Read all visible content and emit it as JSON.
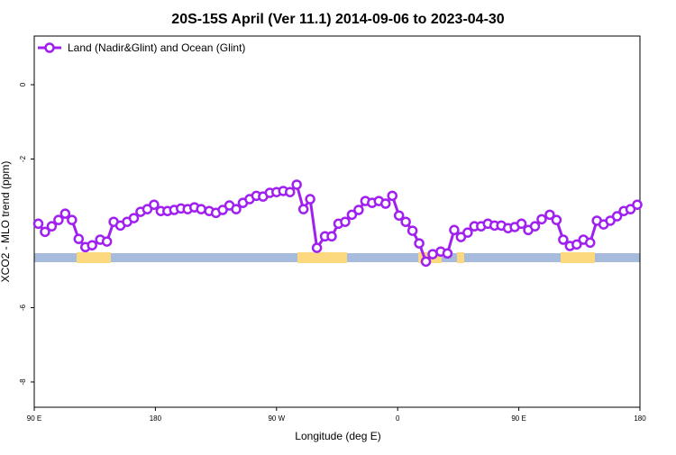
{
  "chart_data": {
    "type": "line",
    "title": "20S-15S April (Ver 11.1)   2014-09-06 to 2023-04-30",
    "x_label": "Longitude (deg E)",
    "y_label": "XCO2 - MLO trend (ppm)",
    "xlim": [
      90,
      540
    ],
    "ylim": [
      -8.68,
      1.31
    ],
    "xticks": [
      {
        "value": 90,
        "label": "90 E"
      },
      {
        "value": 180,
        "label": "180"
      },
      {
        "value": 270,
        "label": "90 W"
      },
      {
        "value": 360,
        "label": "0"
      },
      {
        "value": 450,
        "label": "90 E"
      },
      {
        "value": 540,
        "label": "180"
      }
    ],
    "yticks": [
      -8,
      -6,
      -2,
      0
    ],
    "legend": "top-left",
    "series": [
      {
        "name": "Land (Nadir&Glint) and Ocean (Glint)",
        "color": "#a020f0",
        "x": [
          93,
          98,
          103,
          108,
          113,
          118,
          123,
          128,
          133,
          139,
          144,
          149,
          154,
          159,
          164,
          169,
          174,
          179,
          184,
          189,
          194,
          199,
          204,
          209,
          214,
          220,
          225,
          230,
          235,
          240,
          245,
          250,
          255,
          260,
          265,
          270,
          275,
          280,
          285,
          290,
          295,
          300,
          306,
          311,
          316,
          321,
          326,
          331,
          336,
          341,
          346,
          351,
          356,
          361,
          366,
          371,
          376,
          381,
          386,
          392,
          397,
          402,
          407,
          412,
          417,
          422,
          427,
          432,
          437,
          442,
          447,
          452,
          457,
          462,
          467,
          473,
          478,
          483,
          488,
          493,
          498,
          503,
          508,
          513,
          518,
          523,
          528,
          533,
          538
        ],
        "values": [
          -3.74,
          -3.96,
          -3.81,
          -3.64,
          -3.47,
          -3.64,
          -4.15,
          -4.37,
          -4.32,
          -4.17,
          -4.22,
          -3.69,
          -3.79,
          -3.69,
          -3.59,
          -3.42,
          -3.35,
          -3.23,
          -3.4,
          -3.4,
          -3.37,
          -3.33,
          -3.35,
          -3.3,
          -3.35,
          -3.4,
          -3.45,
          -3.37,
          -3.25,
          -3.35,
          -3.18,
          -3.08,
          -2.99,
          -3.01,
          -2.91,
          -2.89,
          -2.86,
          -2.89,
          -2.69,
          -3.35,
          -3.08,
          -4.39,
          -4.08,
          -4.08,
          -3.74,
          -3.69,
          -3.5,
          -3.37,
          -3.13,
          -3.18,
          -3.13,
          -3.2,
          -2.99,
          -3.52,
          -3.69,
          -3.93,
          -4.27,
          -4.76,
          -4.56,
          -4.49,
          -4.54,
          -3.91,
          -4.1,
          -3.98,
          -3.81,
          -3.81,
          -3.74,
          -3.79,
          -3.79,
          -3.86,
          -3.83,
          -3.74,
          -3.91,
          -3.81,
          -3.62,
          -3.5,
          -3.64,
          -4.17,
          -4.34,
          -4.3,
          -4.17,
          -4.25,
          -3.66,
          -3.76,
          -3.66,
          -3.54,
          -3.4,
          -3.35,
          -3.23
        ]
      }
    ]
  }
}
